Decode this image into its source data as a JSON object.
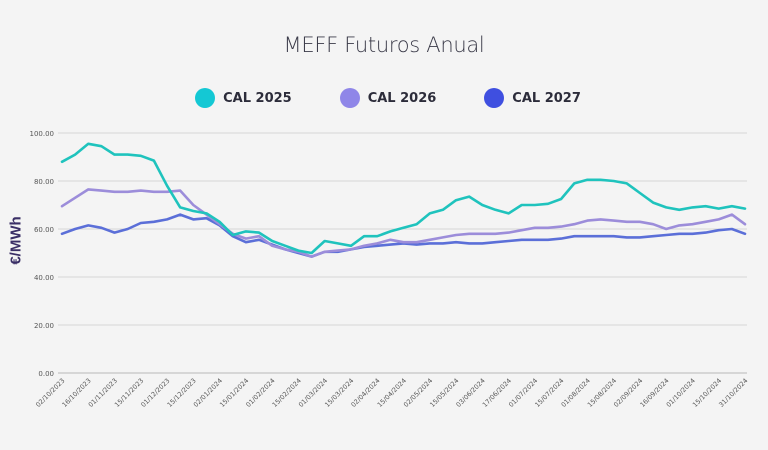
{
  "chart_data": {
    "type": "line",
    "title": "MEFF Futuros Anual",
    "ylabel": "€/MWh",
    "xlabel": "",
    "ylim": [
      0,
      100
    ],
    "yticks": [
      "0.00",
      "20.00",
      "40.00",
      "60.00",
      "80.00",
      "100.00"
    ],
    "ytick_values": [
      0,
      20,
      40,
      60,
      80,
      100
    ],
    "grid": true,
    "legend_position": "top",
    "xtick_labels": [
      "02/10/2023",
      "16/10/2023",
      "01/11/2023",
      "15/11/2023",
      "01/12/2023",
      "15/12/2023",
      "02/01/2024",
      "15/01/2024",
      "01/02/2024",
      "15/02/2024",
      "01/03/2024",
      "15/03/2024",
      "02/04/2024",
      "15/04/2024",
      "02/05/2024",
      "15/05/2024",
      "03/06/2024",
      "17/06/2024",
      "01/07/2024",
      "15/07/2024",
      "01/08/2024",
      "15/08/2024",
      "02/09/2024",
      "16/09/2024",
      "01/10/2024",
      "15/10/2024",
      "31/10/2024"
    ],
    "x": [
      "02/10/2023",
      "09/10/2023",
      "16/10/2023",
      "24/10/2023",
      "01/11/2023",
      "08/11/2023",
      "15/11/2023",
      "23/11/2023",
      "01/12/2023",
      "08/12/2023",
      "15/12/2023",
      "22/12/2023",
      "02/01/2024",
      "09/01/2024",
      "15/01/2024",
      "23/01/2024",
      "01/02/2024",
      "08/02/2024",
      "15/02/2024",
      "22/02/2024",
      "01/03/2024",
      "08/03/2024",
      "15/03/2024",
      "22/03/2024",
      "02/04/2024",
      "09/04/2024",
      "15/04/2024",
      "24/04/2024",
      "02/05/2024",
      "09/05/2024",
      "15/05/2024",
      "24/05/2024",
      "03/06/2024",
      "10/06/2024",
      "17/06/2024",
      "24/06/2024",
      "01/07/2024",
      "08/07/2024",
      "15/07/2024",
      "23/07/2024",
      "01/08/2024",
      "08/08/2024",
      "15/08/2024",
      "23/08/2024",
      "02/09/2024",
      "09/09/2024",
      "16/09/2024",
      "23/09/2024",
      "01/10/2024",
      "08/10/2024",
      "15/10/2024",
      "23/10/2024",
      "31/10/2024"
    ],
    "series": [
      {
        "name": "CAL 2025",
        "color": "#1fc3bd",
        "legend_color": "#14c8d4",
        "values": [
          88,
          91,
          95.5,
          94.5,
          91,
          91,
          90.5,
          88.5,
          78,
          69,
          67.5,
          66.5,
          63,
          57.5,
          59,
          58.5,
          55,
          53,
          51,
          50,
          55,
          54,
          53,
          57,
          57,
          59,
          60.5,
          62,
          66.5,
          68,
          72,
          73.5,
          70,
          68,
          66.5,
          70,
          70,
          70.5,
          72.5,
          79,
          80.5,
          80.5,
          80,
          79,
          75,
          71,
          69,
          68,
          69,
          69.5,
          68.5,
          69.5,
          68.5
        ]
      },
      {
        "name": "CAL 2026",
        "color": "#9c8dda",
        "legend_color": "#8f86e8",
        "values": [
          69.5,
          73,
          76.5,
          76,
          75.5,
          75.5,
          76,
          75.5,
          75.5,
          76,
          70,
          66,
          62,
          58,
          56,
          57,
          53,
          51.5,
          50.5,
          48.5,
          50.5,
          51,
          51.5,
          53,
          54,
          55.5,
          54.5,
          54.5,
          55.5,
          56.5,
          57.5,
          58,
          58,
          58,
          58.5,
          59.5,
          60.5,
          60.5,
          61,
          62,
          63.5,
          64,
          63.5,
          63,
          63,
          62,
          60,
          61.5,
          62,
          63,
          64,
          66,
          62
        ]
      },
      {
        "name": "CAL 2027",
        "color": "#5b6fd8",
        "legend_color": "#3f4fe0",
        "values": [
          58,
          60,
          61.5,
          60.5,
          58.5,
          60,
          62.5,
          63,
          64,
          66,
          64,
          64.5,
          61.5,
          57,
          54.5,
          55.5,
          53.5,
          51.5,
          50,
          48.5,
          50.5,
          50.5,
          51.5,
          52.5,
          53,
          53.5,
          54,
          53.5,
          54,
          54,
          54.5,
          54,
          54,
          54.5,
          55,
          55.5,
          55.5,
          55.5,
          56,
          57,
          57,
          57,
          57,
          56.5,
          56.5,
          57,
          57.5,
          58,
          58,
          58.5,
          59.5,
          60,
          58
        ]
      }
    ]
  }
}
